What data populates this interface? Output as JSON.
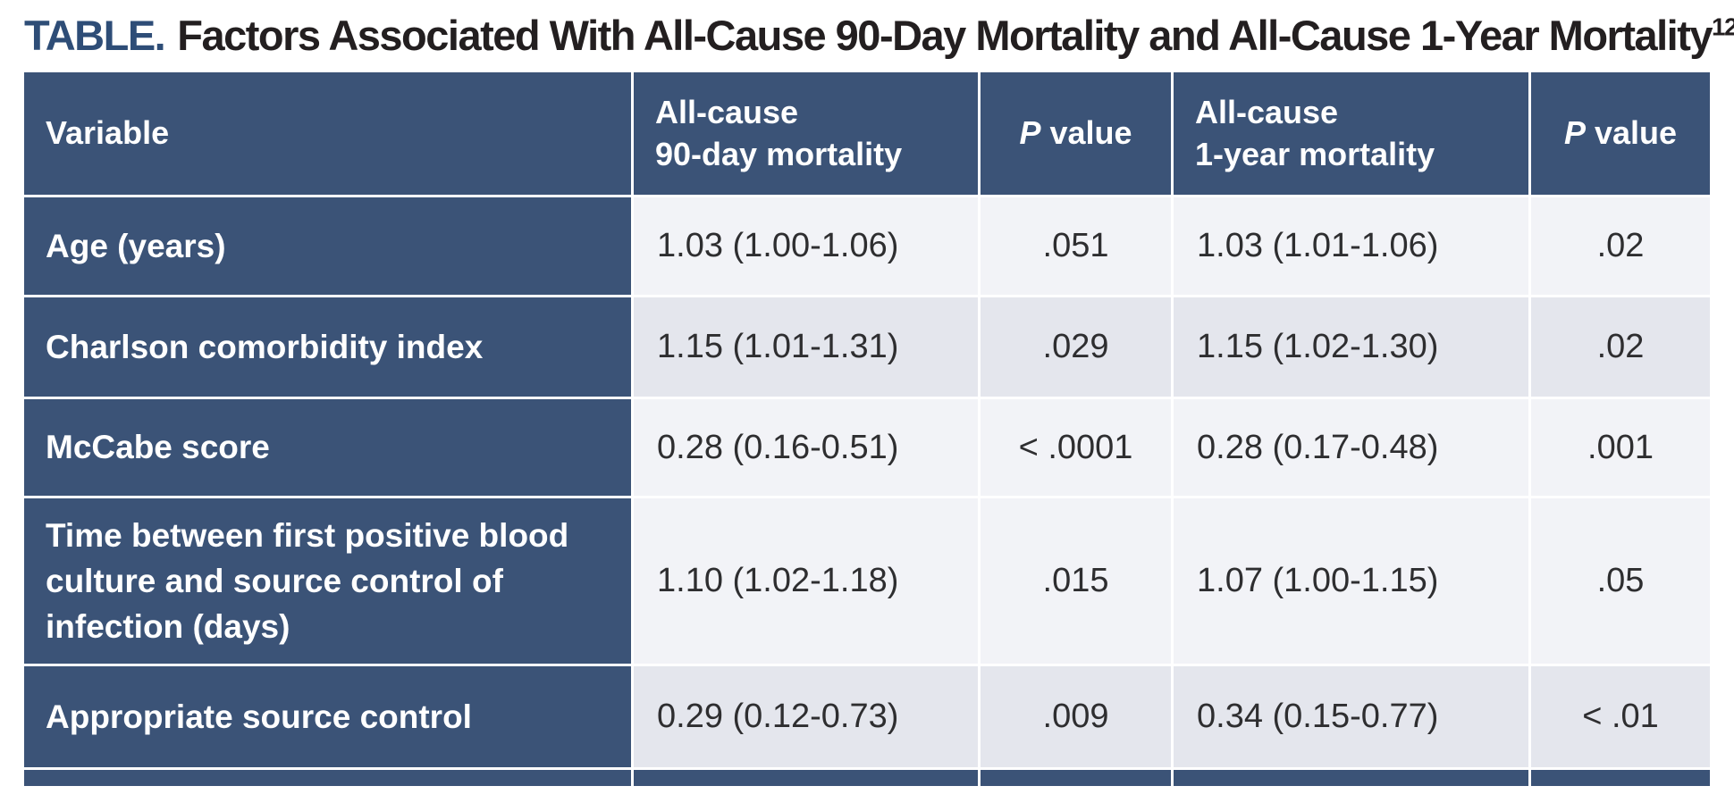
{
  "title": {
    "prefix": "TABLE.",
    "text": "Factors Associated With All-Cause 90-Day Mortality and All-Cause 1-Year Mortality",
    "superscript": "12"
  },
  "colors": {
    "header_bg": "#3b5377",
    "title_accent": "#2e4d77",
    "row_light": "#f2f3f7",
    "row_dark": "#e4e6ed",
    "body_text": "#2e2e30"
  },
  "header": {
    "variable": "Variable",
    "mortality90": {
      "line1": "All-cause",
      "line2": "90-day mortality"
    },
    "pvalue90": {
      "italic": "P",
      "rest": "value"
    },
    "mortality1y": {
      "line1": "All-cause",
      "line2": "1-year mortality"
    },
    "pvalue1y": {
      "italic": "P",
      "rest": "value"
    }
  },
  "rows": [
    {
      "variable": "Age (years)",
      "m90": "1.03 (1.00-1.06)",
      "p90": ".051",
      "m1y": "1.03 (1.01-1.06)",
      "p1y": ".02"
    },
    {
      "variable": "Charlson comorbidity index",
      "m90": "1.15 (1.01-1.31)",
      "p90": ".029",
      "m1y": "1.15 (1.02-1.30)",
      "p1y": ".02"
    },
    {
      "variable": "McCabe score",
      "m90": "0.28 (0.16-0.51)",
      "p90": "< .0001",
      "m1y": "0.28 (0.17-0.48)",
      "p1y": ".001"
    },
    {
      "variable": "Time between first positive blood culture and source control of infection (days)",
      "m90": "1.10 (1.02-1.18)",
      "p90": ".015",
      "m1y": "1.07 (1.00-1.15)",
      "p1y": ".05"
    },
    {
      "variable": "Appropriate source control",
      "m90": "0.29 (0.12-0.73)",
      "p90": ".009",
      "m1y": "0.34 (0.15-0.77)",
      "p1y": "< .01"
    }
  ]
}
